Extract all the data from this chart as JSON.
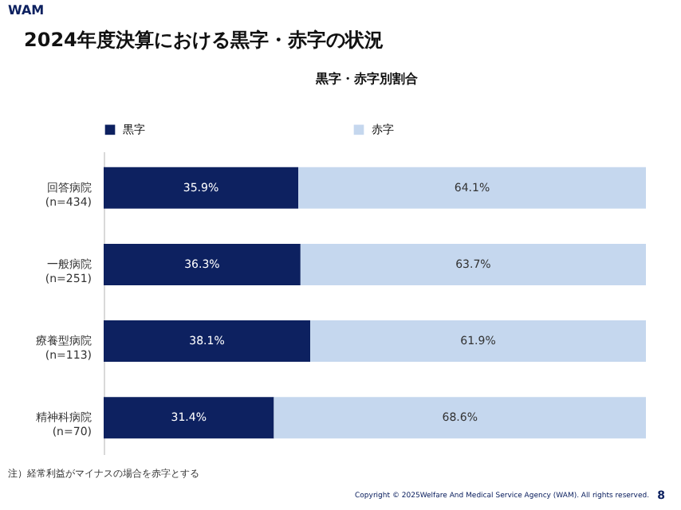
{
  "chart_data": {
    "type": "bar",
    "orientation": "horizontal",
    "stacked": true,
    "title": "2024年度決算における黒字・赤字の状況",
    "subtitle": "黒字・赤字別割合",
    "categories": [
      "回答病院\n(n=434)",
      "一般病院\n(n=251)",
      "療養型病院\n(n=113)",
      "精神科病院\n(n=70)"
    ],
    "series": [
      {
        "name": "黒字",
        "color": "#0d2160",
        "values": [
          35.9,
          36.3,
          38.1,
          31.4
        ],
        "value_labels": [
          "35.9%",
          "36.3%",
          "38.1%",
          "31.4%"
        ]
      },
      {
        "name": "赤字",
        "color": "#c5d7ee",
        "values": [
          64.1,
          63.7,
          61.9,
          68.6
        ],
        "value_labels": [
          "64.1%",
          "63.7%",
          "61.9%",
          "68.6%"
        ]
      }
    ],
    "tick_labels": "y",
    "legend": "top",
    "annotations": [
      "WAM",
      "注）経常利益がマイナスの場合を赤字とする",
      "Copyright © 2025Welfare And Medical Service Agency (WAM). All rights reserved.",
      "8"
    ]
  }
}
